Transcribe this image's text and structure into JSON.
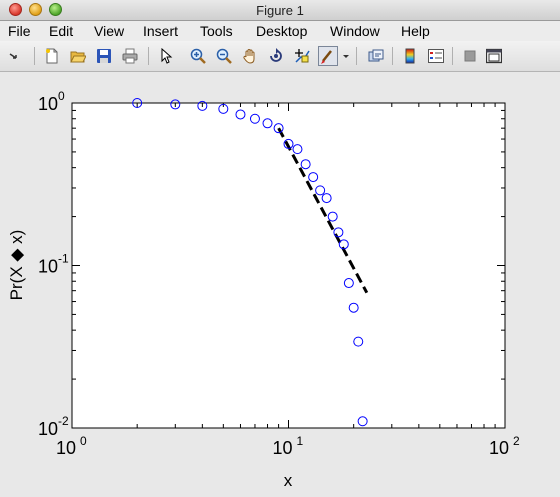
{
  "window": {
    "title": "Figure 1"
  },
  "menu": [
    "File",
    "Edit",
    "View",
    "Insert",
    "Tools",
    "Desktop",
    "Window",
    "Help"
  ],
  "toolbar": [
    "arrow-icon",
    "new-figure-icon",
    "open-file-icon",
    "save-icon",
    "print-icon",
    "pointer-icon",
    "zoom-in-icon",
    "zoom-out-icon",
    "pan-hand-icon",
    "rotate-3d-icon",
    "data-cursor-icon",
    "brush-icon",
    "dropdown-arrow-icon",
    "link-plot-icon",
    "colorbar-icon",
    "legend-icon",
    "hide-plot-tools-icon",
    "show-plot-tools-icon"
  ],
  "chart_data": {
    "type": "scatter",
    "xscale": "log",
    "yscale": "log",
    "xlim": [
      1,
      100
    ],
    "ylim": [
      0.01,
      1
    ],
    "xlabel": "x",
    "ylabel": "Pr(X ◆ x)",
    "xticks": [
      {
        "base": "10",
        "exp": "0"
      },
      {
        "base": "10",
        "exp": "1"
      },
      {
        "base": "10",
        "exp": "2"
      }
    ],
    "yticks": [
      {
        "base": "10",
        "exp": "-2"
      },
      {
        "base": "10",
        "exp": "-1"
      },
      {
        "base": "10",
        "exp": "0"
      }
    ],
    "series": [
      {
        "marker": "circle",
        "color": "#0000ff",
        "x": [
          2,
          3,
          4,
          5,
          6,
          7,
          8,
          9,
          10,
          11,
          12,
          13,
          14,
          15,
          16,
          17,
          18,
          19,
          20,
          21,
          22
        ],
        "y": [
          1.0,
          0.98,
          0.96,
          0.92,
          0.85,
          0.8,
          0.75,
          0.7,
          0.56,
          0.52,
          0.42,
          0.35,
          0.29,
          0.26,
          0.2,
          0.16,
          0.135,
          0.078,
          0.055,
          0.034,
          0.011
        ]
      },
      {
        "type": "line",
        "style": "dashed",
        "color": "#000000",
        "x": [
          9,
          23
        ],
        "y": [
          0.7,
          0.068
        ]
      }
    ]
  }
}
